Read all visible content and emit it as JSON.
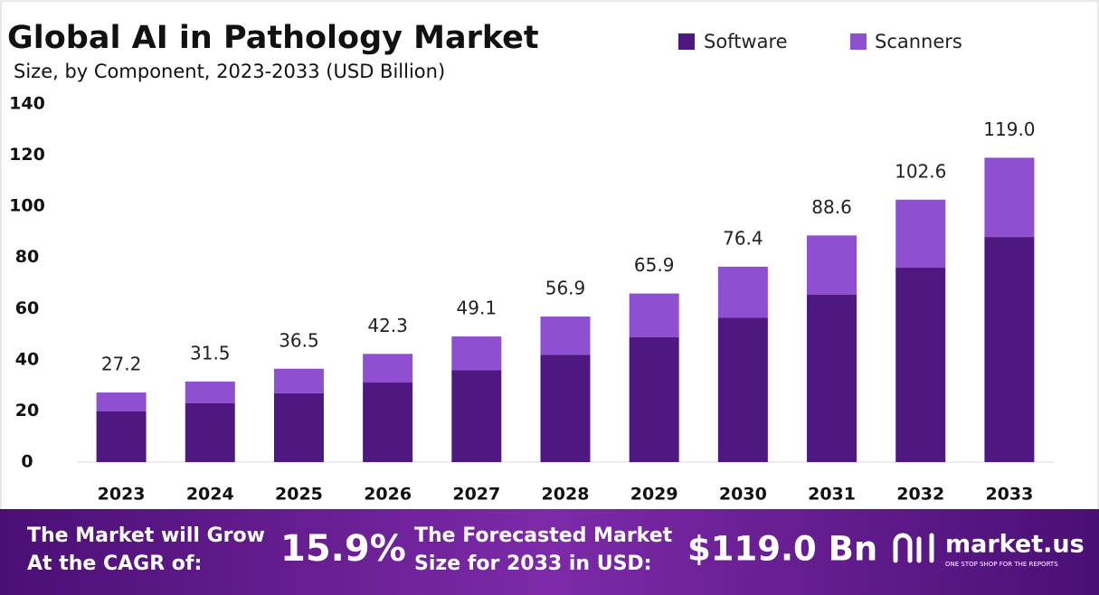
{
  "chart_data": {
    "type": "stacked_bar",
    "title": "Global AI in Pathology Market",
    "subtitle": "Size, by Component, 2023-2033 (USD Billion)",
    "categories": [
      "2023",
      "2024",
      "2025",
      "2026",
      "2027",
      "2028",
      "2029",
      "2030",
      "2031",
      "2032",
      "2033"
    ],
    "series": [
      {
        "name": "Software",
        "color": "#4f1880",
        "values": [
          19.8,
          23.0,
          26.9,
          31.1,
          36.0,
          42.0,
          48.8,
          56.5,
          65.4,
          76.0,
          88.0
        ]
      },
      {
        "name": "Scanners",
        "color": "#8e4fd0",
        "values": [
          7.4,
          8.5,
          9.6,
          11.2,
          13.1,
          14.9,
          17.1,
          19.9,
          23.2,
          26.6,
          31.0
        ]
      }
    ],
    "totals": [
      27.2,
      31.5,
      36.5,
      42.3,
      49.1,
      56.9,
      65.9,
      76.4,
      88.6,
      102.6,
      {
        "value": 119.0,
        "label": "119.0"
      }
    ],
    "ylim": [
      0,
      140
    ],
    "yticks": [
      0,
      20,
      40,
      60,
      80,
      100,
      120,
      140
    ],
    "grid": false
  },
  "footer": {
    "cagr_text": [
      "The Market will Grow",
      "At the CAGR of:"
    ],
    "cagr": "15.9%",
    "forecast_text": [
      "The Forecasted Market",
      "Size for 2033 in USD:"
    ],
    "forecast": "$119.0 Bn",
    "brand": "market.us",
    "tagline": "ONE STOP SHOP FOR THE REPORTS"
  }
}
